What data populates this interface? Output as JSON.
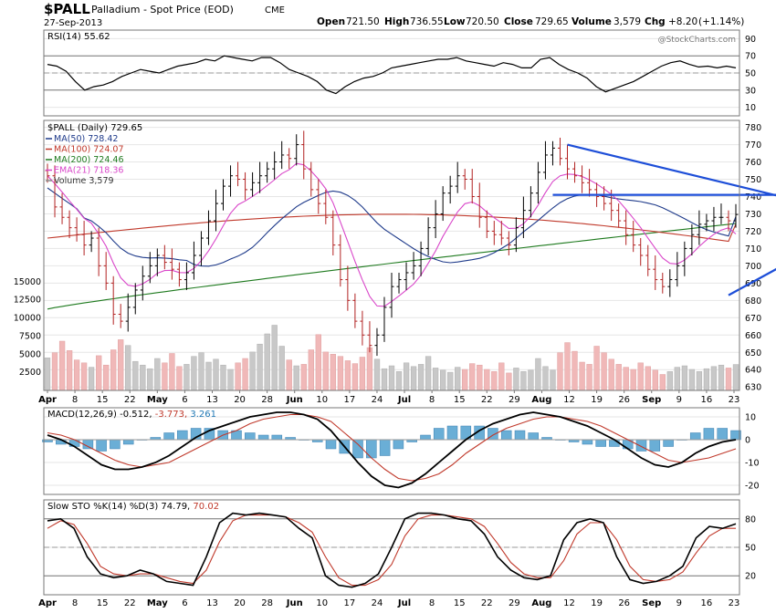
{
  "header": {
    "symbol": "$PALL",
    "name": "Palladium - Spot Price (EOD)",
    "exchange": "CME",
    "date": "27-Sep-2013",
    "open_label": "Open",
    "open": "721.50",
    "high_label": "High",
    "high": "736.55",
    "low_label": "Low",
    "low": "720.50",
    "close_label": "Close",
    "close": "729.65",
    "volume_label": "Volume",
    "volume": "3,579",
    "chg_label": "Chg",
    "chg": "+8.20",
    "chg_pct": "(+1.14%)",
    "watermark": "@StockCharts.com"
  },
  "chart_data": [
    {
      "type": "line",
      "panel": "rsi",
      "legend": "RSI(14) 55.62",
      "ylim": [
        0,
        100
      ],
      "yticks": [
        90,
        70,
        50,
        30,
        10
      ],
      "overbought": 70,
      "oversold": 30,
      "series": [
        {
          "name": "RSI(14)",
          "color": "#000000",
          "values": [
            60,
            58,
            52,
            40,
            30,
            34,
            36,
            40,
            46,
            50,
            54,
            52,
            50,
            54,
            58,
            60,
            62,
            66,
            64,
            70,
            68,
            66,
            64,
            68,
            68,
            62,
            54,
            50,
            46,
            40,
            30,
            26,
            34,
            40,
            44,
            46,
            50,
            56,
            58,
            60,
            62,
            64,
            66,
            66,
            68,
            64,
            62,
            60,
            58,
            62,
            60,
            56,
            56,
            66,
            68,
            60,
            54,
            50,
            44,
            34,
            28,
            32,
            36,
            40,
            46,
            52,
            58,
            62,
            64,
            60,
            57,
            58,
            56,
            58,
            56
          ]
        }
      ]
    },
    {
      "type": "bar",
      "panel": "price",
      "legend": "$PALL (Daily) 729.65",
      "ylim": [
        628,
        784
      ],
      "yticks": [
        780,
        770,
        760,
        750,
        740,
        730,
        720,
        710,
        700,
        690,
        680,
        670,
        660,
        650,
        640,
        630
      ],
      "volume_yticks": [
        "15000",
        "12500",
        "10000",
        "7500",
        "5000",
        "2500"
      ],
      "volume_ylim": [
        0,
        18000
      ],
      "x_labels": [
        "Apr",
        "8",
        "15",
        "22",
        "May",
        "6",
        "13",
        "20",
        "28",
        "Jun",
        "10",
        "17",
        "24",
        "Jul",
        "8",
        "15",
        "22",
        "29",
        "Aug",
        "12",
        "19",
        "26",
        "Sep",
        "9",
        "16",
        "23"
      ],
      "bold_labels": [
        "Apr",
        "May",
        "Jun",
        "Jul",
        "Aug",
        "Sep"
      ],
      "close": [
        752,
        734,
        728,
        722,
        718,
        712,
        716,
        700,
        690,
        672,
        668,
        676,
        686,
        694,
        700,
        706,
        702,
        698,
        692,
        696,
        706,
        716,
        726,
        736,
        746,
        752,
        750,
        744,
        748,
        752,
        756,
        760,
        764,
        762,
        770,
        756,
        744,
        736,
        728,
        712,
        692,
        680,
        668,
        660,
        654,
        660,
        676,
        688,
        692,
        696,
        700,
        710,
        722,
        730,
        742,
        746,
        752,
        750,
        740,
        728,
        720,
        718,
        716,
        712,
        722,
        732,
        742,
        754,
        764,
        768,
        762,
        756,
        752,
        748,
        744,
        740,
        736,
        732,
        726,
        718,
        712,
        706,
        698,
        692,
        688,
        692,
        700,
        710,
        718,
        724,
        726,
        728,
        728,
        726,
        729.65
      ],
      "overlays": [
        {
          "name": "MA(50)",
          "value": "728.42",
          "color": "#1e3a8a"
        },
        {
          "name": "MA(100)",
          "value": "724.07",
          "color": "#c0392b"
        },
        {
          "name": "MA(200)",
          "value": "724.46",
          "color": "#1e7a1e"
        },
        {
          "name": "EMA(21)",
          "value": "718.36",
          "color": "#d946c9"
        },
        {
          "name": "Volume",
          "value": "3,579",
          "color": "#888888"
        }
      ],
      "trendlines": [
        {
          "name": "falling resistance",
          "from": [
            71,
            770
          ],
          "to": [
            107,
            733
          ],
          "color": "#1d4ed8"
        },
        {
          "name": "horizontal resistance",
          "from": [
            69,
            741
          ],
          "to": [
            109,
            741
          ],
          "color": "#1d4ed8"
        },
        {
          "name": "rising support",
          "from": [
            93,
            683
          ],
          "to": [
            109,
            720
          ],
          "color": "#1d4ed8"
        }
      ],
      "volume": [
        4500,
        5200,
        6800,
        5500,
        4200,
        3800,
        3200,
        4800,
        3500,
        5600,
        7000,
        6200,
        4000,
        3500,
        3000,
        4400,
        3800,
        5100,
        3300,
        3600,
        4700,
        5200,
        3900,
        4300,
        3500,
        2900,
        3800,
        4400,
        5300,
        6400,
        7800,
        9000,
        6100,
        4200,
        3400,
        3600,
        5600,
        7700,
        5300,
        5000,
        4700,
        4100,
        3700,
        4600,
        5900,
        4300,
        3000,
        3400,
        2600,
        3800,
        3300,
        3600,
        4700,
        3100,
        2800,
        2500,
        3200,
        2900,
        3700,
        3500,
        2900,
        2600,
        3800,
        2400,
        3100,
        2600,
        2800,
        4400,
        3300,
        2800,
        5200,
        6600,
        5400,
        3900,
        3600,
        6100,
        5200,
        4300,
        3600,
        3200,
        2900,
        3800,
        3300,
        2800,
        2200,
        2600,
        3200,
        3400,
        2900,
        2600,
        3000,
        3300,
        3500,
        3100,
        3579
      ]
    },
    {
      "type": "line",
      "panel": "macd",
      "legend_title": "MACD(12,26,9)",
      "legend_values": [
        "-0.512",
        "-3.773",
        "3.261"
      ],
      "legend_colors": [
        "#000000",
        "#c0392b",
        "#1f77b4"
      ],
      "ylim": [
        -24,
        14
      ],
      "yticks": [
        10,
        0,
        -10,
        -20
      ],
      "series": [
        {
          "name": "MACD",
          "color": "#000000",
          "values": [
            2,
            0,
            -3,
            -7,
            -11,
            -13,
            -13,
            -12,
            -10,
            -7,
            -3,
            1,
            4,
            6,
            8,
            10,
            11,
            12,
            12,
            11,
            9,
            4,
            -3,
            -10,
            -16,
            -20,
            -21,
            -19,
            -15,
            -10,
            -5,
            0,
            4,
            7,
            9,
            11,
            12,
            11,
            10,
            8,
            6,
            3,
            0,
            -4,
            -8,
            -11,
            -12,
            -10,
            -6,
            -3,
            -1,
            0
          ]
        },
        {
          "name": "Signal",
          "color": "#c0392b",
          "values": [
            3,
            2,
            0,
            -3,
            -6,
            -9,
            -11,
            -12,
            -11,
            -10,
            -7,
            -4,
            -1,
            2,
            4,
            7,
            9,
            10,
            11,
            11,
            10,
            8,
            3,
            -2,
            -8,
            -13,
            -17,
            -18,
            -17,
            -15,
            -11,
            -6,
            -2,
            2,
            5,
            7,
            9,
            10,
            10,
            9,
            8,
            6,
            3,
            0,
            -3,
            -6,
            -9,
            -10,
            -9,
            -8,
            -6,
            -4
          ]
        }
      ],
      "histogram": [
        -1,
        -2,
        -3,
        -4,
        -5,
        -4,
        -2,
        0,
        1,
        3,
        4,
        5,
        5,
        4,
        4,
        3,
        2,
        2,
        1,
        0,
        -1,
        -4,
        -6,
        -8,
        -8,
        -7,
        -4,
        -1,
        2,
        5,
        6,
        6,
        6,
        5,
        4,
        4,
        3,
        1,
        0,
        -1,
        -2,
        -3,
        -3,
        -4,
        -5,
        -5,
        -3,
        0,
        3,
        5,
        5,
        4
      ]
    },
    {
      "type": "line",
      "panel": "stoch",
      "legend_title": "Slow STO %K(14) %D(3)",
      "legend_values": [
        "74.79",
        "70.02"
      ],
      "legend_colors": [
        "#000000",
        "#c0392b"
      ],
      "ylim": [
        0,
        100
      ],
      "yticks": [
        80,
        50,
        20
      ],
      "series": [
        {
          "name": "%K",
          "color": "#000000",
          "values": [
            78,
            80,
            70,
            40,
            22,
            18,
            20,
            26,
            22,
            14,
            12,
            10,
            40,
            76,
            86,
            84,
            86,
            84,
            82,
            70,
            60,
            20,
            10,
            8,
            12,
            22,
            50,
            80,
            86,
            86,
            84,
            80,
            78,
            64,
            40,
            26,
            18,
            16,
            20,
            58,
            76,
            80,
            76,
            40,
            16,
            12,
            14,
            20,
            30,
            60,
            72,
            70,
            74.79
          ]
        },
        {
          "name": "%D",
          "color": "#c0392b",
          "values": [
            70,
            78,
            74,
            54,
            30,
            22,
            20,
            22,
            22,
            18,
            14,
            12,
            26,
            56,
            78,
            84,
            84,
            84,
            82,
            76,
            66,
            40,
            18,
            10,
            10,
            16,
            32,
            62,
            80,
            84,
            84,
            82,
            80,
            72,
            54,
            34,
            22,
            18,
            18,
            36,
            64,
            76,
            76,
            58,
            30,
            16,
            14,
            16,
            24,
            44,
            62,
            70,
            70.02
          ]
        }
      ]
    }
  ]
}
